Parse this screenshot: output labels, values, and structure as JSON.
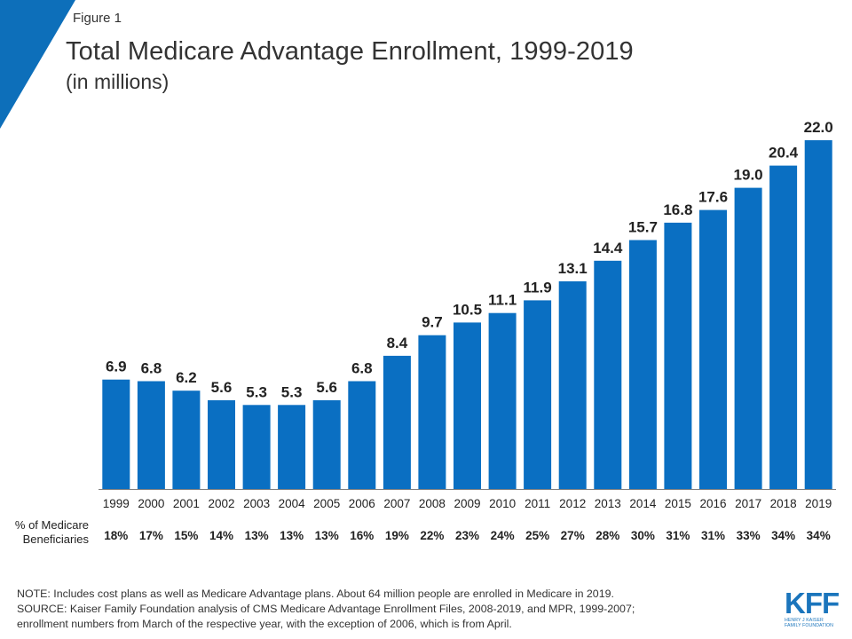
{
  "colors": {
    "accent": "#0d6fba",
    "bar": "#0a6fc2"
  },
  "figure_label": "Figure 1",
  "chart_data": {
    "type": "bar",
    "title": "Total Medicare Advantage Enrollment, 1999-2019",
    "subtitle": "(in millions)",
    "categories": [
      "1999",
      "2000",
      "2001",
      "2002",
      "2003",
      "2004",
      "2005",
      "2006",
      "2007",
      "2008",
      "2009",
      "2010",
      "2011",
      "2012",
      "2013",
      "2014",
      "2015",
      "2016",
      "2017",
      "2018",
      "2019"
    ],
    "values": [
      6.9,
      6.8,
      6.2,
      5.6,
      5.3,
      5.3,
      5.6,
      6.8,
      8.4,
      9.7,
      10.5,
      11.1,
      11.9,
      13.1,
      14.4,
      15.7,
      16.8,
      17.6,
      19.0,
      20.4,
      22.0
    ],
    "value_labels": [
      "6.9",
      "6.8",
      "6.2",
      "5.6",
      "5.3",
      "5.3",
      "5.6",
      "6.8",
      "8.4",
      "9.7",
      "10.5",
      "11.1",
      "11.9",
      "13.1",
      "14.4",
      "15.7",
      "16.8",
      "17.6",
      "19.0",
      "20.4",
      "22.0"
    ],
    "ylim": [
      0,
      22.0
    ],
    "grid": false,
    "secondary_row": {
      "label_line1": "% of Medicare",
      "label_line2": "Beneficiaries",
      "values": [
        "18%",
        "17%",
        "15%",
        "14%",
        "13%",
        "13%",
        "13%",
        "16%",
        "19%",
        "22%",
        "23%",
        "24%",
        "25%",
        "27%",
        "28%",
        "30%",
        "31%",
        "31%",
        "33%",
        "34%",
        "34%"
      ]
    }
  },
  "notes": {
    "line1": "NOTE: Includes cost plans as well as Medicare Advantage plans. About 64 million people are enrolled in Medicare in 2019.",
    "line2": "SOURCE: Kaiser Family Foundation analysis of CMS Medicare Advantage Enrollment Files, 2008-2019, and MPR, 1999-2007;",
    "line3": "enrollment numbers from March of the respective year, with the exception of 2006, which is from April."
  },
  "logo": {
    "mark": "KFF",
    "sub_line1": "HENRY J KAISER",
    "sub_line2": "FAMILY FOUNDATION"
  }
}
